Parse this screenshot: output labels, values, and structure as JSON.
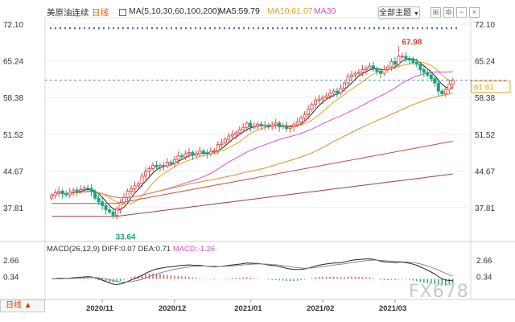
{
  "header": {
    "instrument": "美原油连续",
    "period_tag": "日线",
    "ma_params": "MA(5,10,30,60,100,200)",
    "ma5": "MA5:59.79",
    "ma10": "MA10:61.07",
    "ma30": "MA30",
    "theme_button": "全部主题",
    "theme_caret": "▼"
  },
  "macd": {
    "params": "MACD(26,12,9)",
    "diff": "DIFF:0.07",
    "dea": "DEA:0.71",
    "macd": "MACD:-1.26"
  },
  "footer": {
    "period_selector": "日线 ▲",
    "watermark": "FX678"
  },
  "colors": {
    "up": "#e24b4b",
    "down": "#1aa57a",
    "ma5": "#222222",
    "ma10": "#e6a020",
    "ma30": "#d94fd6",
    "ma60": "#e08a2e",
    "ma100": "#c94a4a",
    "ma200": "#a04040",
    "accent_blue": "#1f5fb5",
    "last_price": "#f0a020"
  },
  "chart_data": {
    "type": "candlestick",
    "price_axis_ticks": [
      "72.10",
      "65.24",
      "58.38",
      "51.52",
      "44.67",
      "37.81"
    ],
    "price_axis_values": [
      72.1,
      65.24,
      58.38,
      51.52,
      44.67,
      37.81
    ],
    "price_range": [
      33.0,
      73.0
    ],
    "date_labels": [
      "2020/11",
      "2020/12",
      "2021/01",
      "2021/02",
      "2021/03"
    ],
    "date_label_index": [
      14,
      34,
      55,
      75,
      95
    ],
    "annotations": {
      "high": "67.98",
      "low": "33.64",
      "last": "61.61"
    },
    "high_value": 67.98,
    "high_index": 96,
    "low_value": 33.64,
    "low_index": 17,
    "last_value": 61.61,
    "reference_line": 61.61,
    "closes": [
      40.1,
      40.6,
      40.9,
      40.4,
      40.2,
      40.7,
      41.1,
      40.9,
      41.2,
      41.5,
      41.4,
      40.8,
      39.6,
      38.9,
      38.2,
      37.4,
      37.0,
      36.4,
      37.6,
      38.8,
      39.7,
      40.9,
      41.4,
      41.9,
      42.3,
      43.7,
      44.6,
      45.1,
      45.7,
      45.4,
      45.7,
      45.6,
      46.3,
      46.1,
      46.8,
      47.5,
      47.3,
      47.9,
      48.1,
      47.6,
      47.9,
      48.4,
      48.1,
      47.9,
      48.3,
      48.5,
      49.6,
      49.9,
      50.6,
      51.2,
      51.5,
      51.8,
      52.4,
      52.8,
      53.6,
      52.9,
      53.0,
      53.4,
      53.1,
      53.2,
      52.9,
      53.3,
      53.6,
      52.9,
      53.1,
      52.6,
      52.9,
      53.3,
      53.8,
      54.6,
      55.2,
      56.2,
      57.1,
      57.9,
      58.1,
      58.4,
      58.7,
      59.2,
      59.6,
      59.3,
      60.1,
      61.1,
      62.3,
      62.6,
      62.9,
      63.1,
      63.6,
      63.9,
      64.3,
      63.8,
      63.3,
      62.9,
      63.6,
      64.1,
      65.1,
      64.6,
      66.1,
      66.1,
      65.7,
      65.4,
      64.9,
      64.6,
      63.6,
      63.1,
      62.6,
      61.9,
      61.1,
      59.6,
      59.1,
      59.9,
      60.9,
      61.61
    ],
    "ma_lines_endpoints": {
      "ma5": 59.79,
      "ma10": 61.07
    },
    "macd_axis_ticks": [
      "2.66",
      "0.34"
    ],
    "macd_axis_values": [
      2.66,
      0.34
    ],
    "macd_diff_last": 0.07,
    "macd_dea_last": 0.71,
    "macd_hist_last": -1.26
  }
}
